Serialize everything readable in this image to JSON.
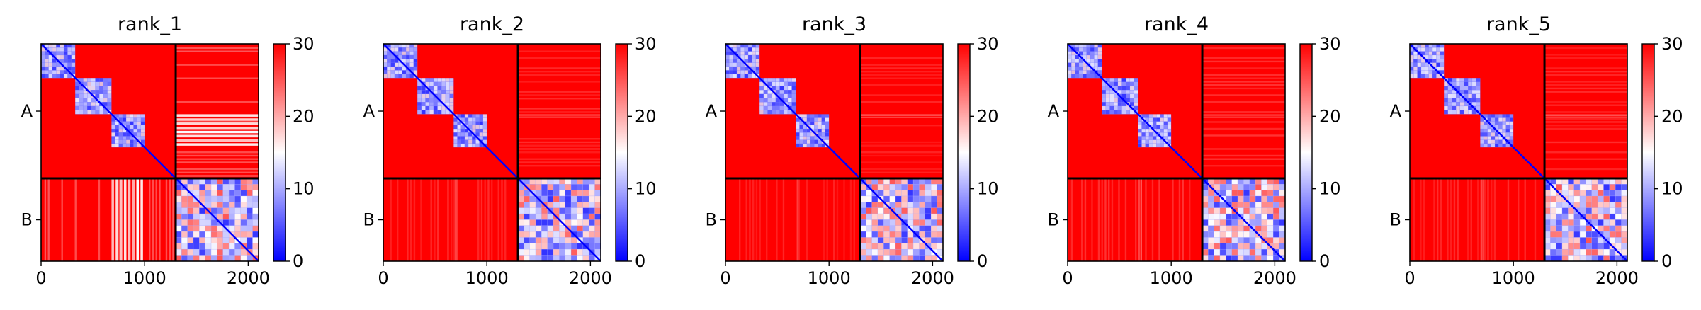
{
  "figure": {
    "panel_count": 5
  },
  "chart_data": [
    {
      "type": "heatmap",
      "title": "rank_1",
      "xlim": [
        0,
        2100
      ],
      "ylim": [
        2100,
        0
      ],
      "x_ticks": [
        0,
        1000,
        2000
      ],
      "y_tick_labels": [
        "A",
        "B"
      ],
      "chain_boundary": 1300,
      "colorbar": {
        "min": 0,
        "max": 30,
        "ticks": [
          0,
          10,
          20,
          30
        ],
        "colormap": "bwr"
      },
      "colors": {
        "low": "#0000ff",
        "mid": "#ffffff",
        "high": "#ff0000"
      },
      "intra_a_blocks": [
        [
          0,
          330
        ],
        [
          330,
          680
        ],
        [
          680,
          1000
        ]
      ],
      "inter_a_b_stripes": [
        [
          680,
          1000
        ]
      ],
      "stripe_level": 14
    },
    {
      "type": "heatmap",
      "title": "rank_2",
      "xlim": [
        0,
        2100
      ],
      "ylim": [
        2100,
        0
      ],
      "x_ticks": [
        0,
        1000,
        2000
      ],
      "y_tick_labels": [
        "A",
        "B"
      ],
      "chain_boundary": 1300,
      "colorbar": {
        "min": 0,
        "max": 30,
        "ticks": [
          0,
          10,
          20,
          30
        ],
        "colormap": "bwr"
      },
      "colors": {
        "low": "#0000ff",
        "mid": "#ffffff",
        "high": "#ff0000"
      },
      "intra_a_blocks": [
        [
          0,
          330
        ],
        [
          330,
          680
        ],
        [
          680,
          1000
        ]
      ],
      "inter_a_b_stripes": [
        [
          680,
          720
        ]
      ],
      "stripe_level": 22
    },
    {
      "type": "heatmap",
      "title": "rank_3",
      "xlim": [
        0,
        2100
      ],
      "ylim": [
        2100,
        0
      ],
      "x_ticks": [
        0,
        1000,
        2000
      ],
      "y_tick_labels": [
        "A",
        "B"
      ],
      "chain_boundary": 1300,
      "colorbar": {
        "min": 0,
        "max": 30,
        "ticks": [
          0,
          10,
          20,
          30
        ],
        "colormap": "bwr"
      },
      "colors": {
        "low": "#0000ff",
        "mid": "#ffffff",
        "high": "#ff0000"
      },
      "intra_a_blocks": [
        [
          0,
          330
        ],
        [
          330,
          680
        ],
        [
          680,
          1000
        ]
      ],
      "inter_a_b_stripes": [
        [
          680,
          720
        ]
      ],
      "stripe_level": 23
    },
    {
      "type": "heatmap",
      "title": "rank_4",
      "xlim": [
        0,
        2100
      ],
      "ylim": [
        2100,
        0
      ],
      "x_ticks": [
        0,
        1000,
        2000
      ],
      "y_tick_labels": [
        "A",
        "B"
      ],
      "chain_boundary": 1300,
      "colorbar": {
        "min": 0,
        "max": 30,
        "ticks": [
          0,
          10,
          20,
          30
        ],
        "colormap": "bwr"
      },
      "colors": {
        "low": "#0000ff",
        "mid": "#ffffff",
        "high": "#ff0000"
      },
      "intra_a_blocks": [
        [
          0,
          330
        ],
        [
          330,
          680
        ],
        [
          680,
          1000
        ]
      ],
      "inter_a_b_stripes": [
        [
          680,
          720
        ]
      ],
      "stripe_level": 21
    },
    {
      "type": "heatmap",
      "title": "rank_5",
      "xlim": [
        0,
        2100
      ],
      "ylim": [
        2100,
        0
      ],
      "x_ticks": [
        0,
        1000,
        2000
      ],
      "y_tick_labels": [
        "A",
        "B"
      ],
      "chain_boundary": 1300,
      "colorbar": {
        "min": 0,
        "max": 30,
        "ticks": [
          0,
          10,
          20,
          30
        ],
        "colormap": "bwr"
      },
      "colors": {
        "low": "#0000ff",
        "mid": "#ffffff",
        "high": "#ff0000"
      },
      "intra_a_blocks": [
        [
          0,
          330
        ],
        [
          330,
          680
        ],
        [
          680,
          1000
        ]
      ],
      "inter_a_b_stripes": [
        [
          680,
          720
        ]
      ],
      "stripe_level": 22
    }
  ]
}
